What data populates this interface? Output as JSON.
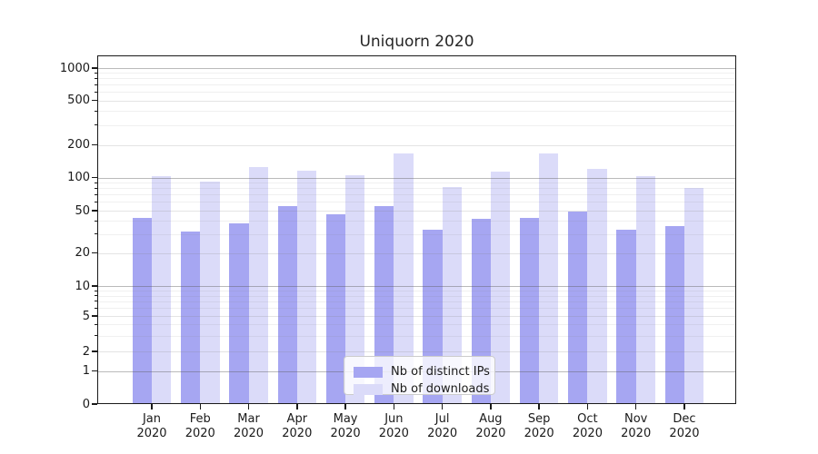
{
  "chart_data": {
    "type": "bar",
    "title": "Uniquorn 2020",
    "categories": [
      "Jan",
      "Feb",
      "Mar",
      "Apr",
      "May",
      "Jun",
      "Jul",
      "Aug",
      "Sep",
      "Oct",
      "Nov",
      "Dec"
    ],
    "category_year": "2020",
    "series": [
      {
        "name": "Nb of distinct IPs",
        "color": "#a6a6f2",
        "values": [
          43,
          32,
          38,
          55,
          46,
          55,
          33,
          42,
          43,
          49,
          33,
          36
        ]
      },
      {
        "name": "Nb of downloads",
        "color": "#dbdbf9",
        "values": [
          102,
          92,
          124,
          116,
          105,
          166,
          82,
          113,
          166,
          121,
          102,
          80
        ]
      }
    ],
    "xlabel": "",
    "ylabel": "",
    "yscale": "symlog",
    "y_ticks": [
      0,
      1,
      2,
      5,
      10,
      20,
      50,
      100,
      200,
      500,
      1000
    ],
    "ylim": [
      0,
      1340
    ],
    "grid": "on",
    "legend_position": "lower center"
  },
  "colors": {
    "grid_major": "rgba(90,90,90,0.42)",
    "grid_mid": "rgba(130,130,130,0.22)",
    "grid_minor": "rgba(130,130,130,0.12)",
    "axis": "#1a1a1a",
    "text": "#1a1a1a",
    "background": "#ffffff"
  }
}
